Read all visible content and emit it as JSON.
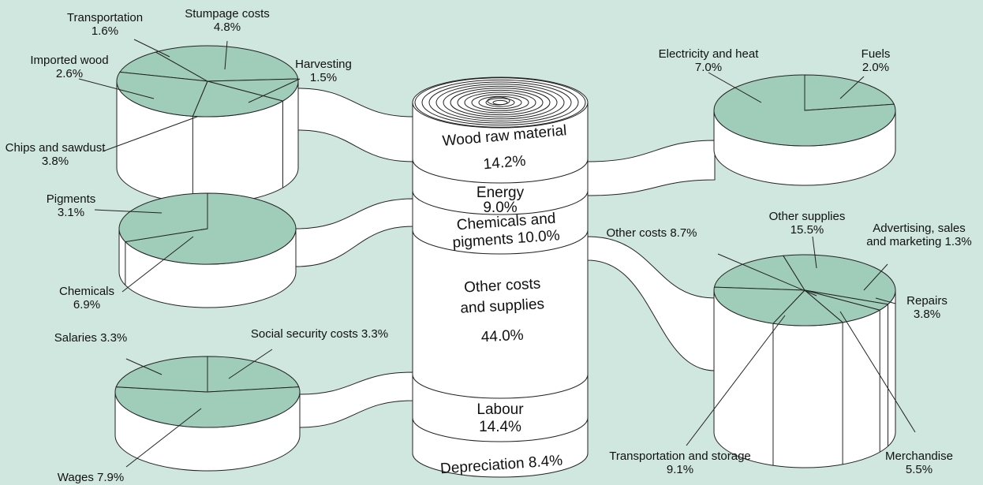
{
  "cylinder": {
    "segments": [
      {
        "lines": [
          "Wood raw material",
          "14.2%"
        ]
      },
      {
        "lines": [
          "Energy",
          "9.0%"
        ]
      },
      {
        "lines": [
          "Chemicals and",
          "pigments 10.0%"
        ]
      },
      {
        "lines": [
          "Other costs",
          "and supplies",
          "44.0%"
        ]
      },
      {
        "lines": [
          "Labour",
          "14.4%"
        ]
      },
      {
        "lines": [
          "Depreciation 8.4%"
        ]
      }
    ]
  },
  "pies": [
    {
      "slices": [
        {
          "lines": [
            "Transportation",
            "1.6%"
          ],
          "value": 1.6
        },
        {
          "lines": [
            "Stumpage costs",
            "4.8%"
          ],
          "value": 4.8
        },
        {
          "lines": [
            "Harvesting",
            "1.5%"
          ],
          "value": 1.5
        },
        {
          "lines": [
            "Imported wood",
            "2.6%"
          ],
          "value": 2.6
        },
        {
          "lines": [
            "Chips and sawdust",
            "3.8%"
          ],
          "value": 3.8
        }
      ]
    },
    {
      "slices": [
        {
          "lines": [
            "Fuels",
            "2.0%"
          ],
          "value": 2.0
        },
        {
          "lines": [
            "Electricity and heat",
            "7.0%"
          ],
          "value": 7.0
        }
      ]
    },
    {
      "slices": [
        {
          "lines": [
            "Chemicals",
            "6.9%"
          ],
          "value": 6.9
        },
        {
          "lines": [
            "Pigments",
            "3.1%"
          ],
          "value": 3.1
        }
      ]
    },
    {
      "slices": [
        {
          "lines": [
            "Other costs 8.7%"
          ],
          "value": 8.7
        },
        {
          "lines": [
            "Other supplies",
            "15.5%"
          ],
          "value": 15.5
        },
        {
          "lines": [
            "Advertising, sales",
            "and marketing 1.3%"
          ],
          "value": 1.3
        },
        {
          "lines": [
            "Repairs",
            "3.8%"
          ],
          "value": 3.8
        },
        {
          "lines": [
            "Merchandise",
            "5.5%"
          ],
          "value": 5.5
        },
        {
          "lines": [
            "Transportation and storage",
            "9.1%"
          ],
          "value": 9.1
        }
      ]
    },
    {
      "slices": [
        {
          "lines": [
            "Social security costs 3.3%"
          ],
          "value": 3.3
        },
        {
          "lines": [
            "Wages 7.9%"
          ],
          "value": 7.9
        },
        {
          "lines": [
            "Salaries 3.3%"
          ],
          "value": 3.3
        }
      ]
    }
  ]
}
